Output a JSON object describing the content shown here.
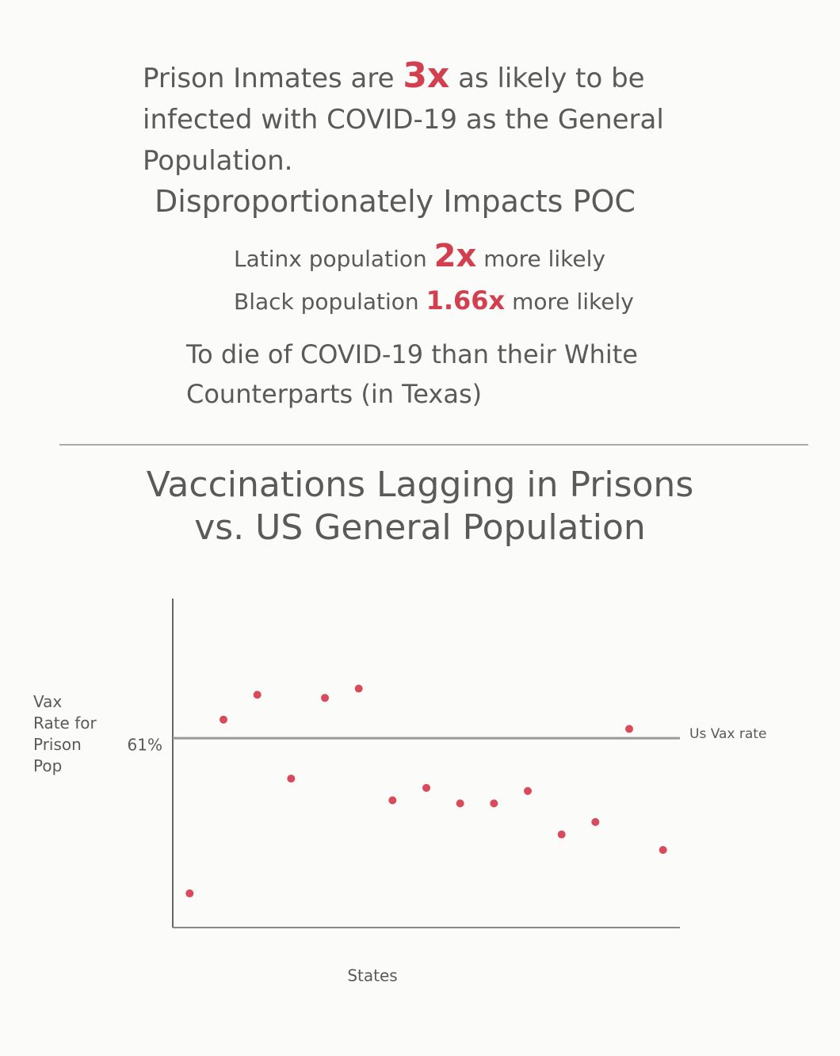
{
  "header": {
    "intro": {
      "before": "Prison Inmates are",
      "highlight": "3x",
      "after": "as likely to be infected with COVID-19 as the General Population."
    },
    "heading": "Disproportionately Impacts POC",
    "latinx": {
      "before": "Latinx population",
      "highlight": "2x",
      "after": "more likely"
    },
    "black": {
      "before": "Black population",
      "highlight": "1.66x",
      "after": "more likely"
    },
    "closing": "To die of COVID-19 than their White Counterparts (in Texas)"
  },
  "chart_data": {
    "type": "scatter",
    "title": "Vaccinations Lagging in Prisons vs. US General Population",
    "xlabel": "States",
    "ylabel": "Vax Rate for Prison Pop",
    "categories": [
      null,
      null,
      null,
      null,
      null,
      null,
      null,
      null,
      null,
      null,
      null,
      null,
      null,
      null,
      null
    ],
    "values": [
      11,
      67,
      75,
      48,
      74,
      77,
      41,
      45,
      40,
      40,
      44,
      30,
      34,
      64,
      25
    ],
    "color": "#d94a5c",
    "ylim": [
      0,
      106
    ],
    "yticks": [
      {
        "value": 61,
        "label": "61%"
      }
    ],
    "reference_line": {
      "value": 61,
      "label": "Us Vax rate"
    },
    "grid": false
  }
}
